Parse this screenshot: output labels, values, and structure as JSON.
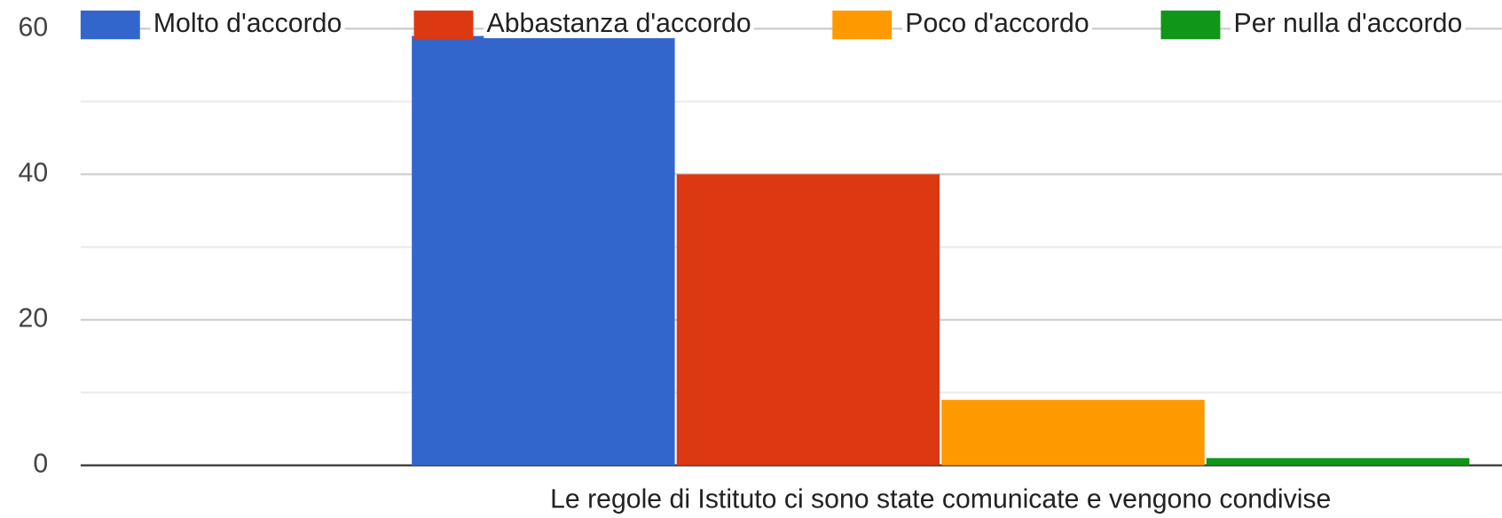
{
  "chart_data": {
    "type": "bar",
    "categories": [
      "Le regole di Istituto ci sono state comunicate e vengono condivise"
    ],
    "series": [
      {
        "name": "Molto d'accordo",
        "color": "#3366cc",
        "values": [
          59
        ]
      },
      {
        "name": "Abbastanza d'accordo",
        "color": "#dc3912",
        "values": [
          40
        ]
      },
      {
        "name": "Poco d'accordo",
        "color": "#ff9900",
        "values": [
          9
        ]
      },
      {
        "name": "Per nulla d'accordo",
        "color": "#109618",
        "values": [
          1
        ]
      }
    ],
    "ylim": [
      0,
      60
    ],
    "yticks": [
      0,
      20,
      40,
      60
    ],
    "yminor": [
      10,
      30,
      50
    ],
    "grid": true,
    "legend": "top"
  }
}
